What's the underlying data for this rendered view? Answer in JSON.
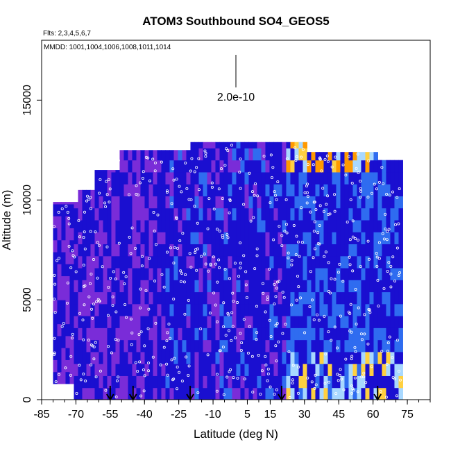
{
  "chart_data": {
    "type": "heatmap",
    "title": "ATOM3 Southbound SO4_GEOS5",
    "subtitle_flights": "Flts: 2,3,4,5,6,7",
    "subtitle_dates": "MMDD: 1001,1004,1006,1008,1011,1014",
    "xlabel": "Latitude (deg N)",
    "ylabel": "Altitude (m)",
    "xlim": [
      -85,
      85
    ],
    "ylim": [
      0,
      18000
    ],
    "x_ticks": [
      -85,
      -70,
      -55,
      -40,
      -25,
      -10,
      5,
      15,
      30,
      45,
      60,
      75
    ],
    "y_ticks": [
      0,
      5000,
      10000,
      15000
    ],
    "scale_bar_label": "2.0e-10",
    "colors": {
      "low": "#1a0fd0",
      "mid_low": "#7a2cd8",
      "mid": "#2f6cf0",
      "mid_high": "#a8d8ff",
      "high": "#ffd040",
      "peak": "#ff9a00"
    },
    "arrow_latitudes": [
      -55,
      -45,
      -20,
      20,
      62
    ]
  }
}
